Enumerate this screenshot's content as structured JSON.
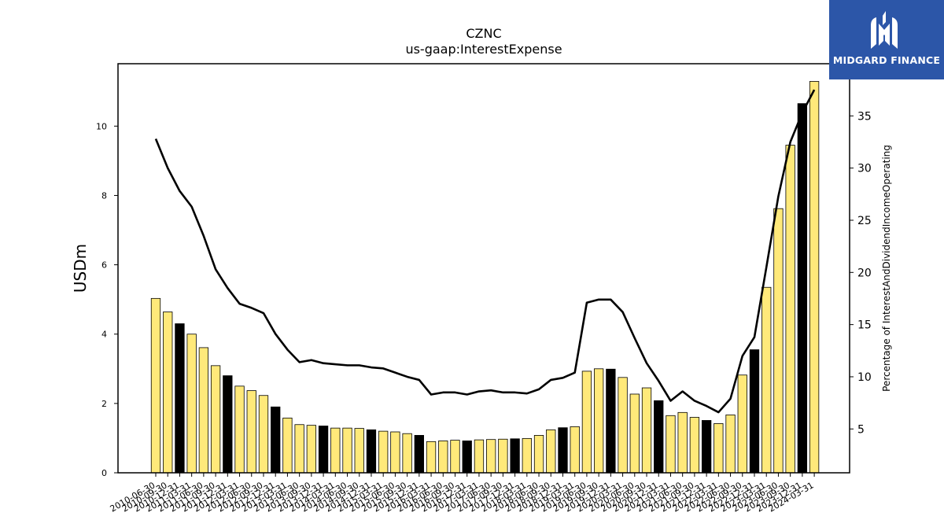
{
  "brand": {
    "name": "MIDGARD FINANCE",
    "color": "#2c56a8"
  },
  "chart_data": {
    "type": "bar+line",
    "title": "CZNC",
    "subtitle": "us-gaap:InterestExpense",
    "ylabel": "USDm",
    "y2label": "Percentage of InterestAndDividendIncomeOperating",
    "ylim": [
      0,
      11.8
    ],
    "y2lim": [
      0.8,
      40
    ],
    "yticks": [
      0,
      2,
      4,
      6,
      8,
      10
    ],
    "y2ticks": [
      5,
      10,
      15,
      20,
      25,
      30,
      35
    ],
    "bar_color": "#ffe97a",
    "bar_highlight_color": "#000000",
    "line_color": "#000000",
    "categories": [
      "2010-06-30",
      "2010-09-30",
      "2010-12-31",
      "2011-03-31",
      "2011-06-30",
      "2011-09-30",
      "2011-12-31",
      "2012-03-31",
      "2012-06-30",
      "2012-09-30",
      "2012-12-31",
      "2013-03-31",
      "2013-06-30",
      "2013-09-30",
      "2013-12-31",
      "2014-03-31",
      "2014-06-30",
      "2014-09-30",
      "2014-12-31",
      "2015-03-31",
      "2015-06-30",
      "2015-09-30",
      "2015-12-31",
      "2016-03-31",
      "2016-06-30",
      "2016-09-30",
      "2016-12-31",
      "2017-03-31",
      "2017-06-30",
      "2017-09-30",
      "2017-12-31",
      "2018-03-31",
      "2018-06-30",
      "2018-09-30",
      "2018-12-31",
      "2019-03-31",
      "2019-06-30",
      "2019-09-30",
      "2019-12-31",
      "2020-03-31",
      "2020-06-30",
      "2020-09-30",
      "2020-12-31",
      "2021-03-31",
      "2021-06-30",
      "2021-09-30",
      "2021-12-31",
      "2022-03-31",
      "2022-06-30",
      "2022-09-30",
      "2022-12-31",
      "2023-03-31",
      "2023-06-30",
      "2023-09-30",
      "2023-12-31",
      "2024-03-31"
    ],
    "series": [
      {
        "type": "bar",
        "axis": "left",
        "values": [
          5.03,
          4.64,
          4.3,
          4.0,
          3.61,
          3.09,
          2.8,
          2.5,
          2.37,
          2.23,
          1.9,
          1.58,
          1.39,
          1.37,
          1.35,
          1.29,
          1.29,
          1.28,
          1.24,
          1.2,
          1.18,
          1.13,
          1.08,
          0.9,
          0.92,
          0.94,
          0.92,
          0.95,
          0.96,
          0.97,
          0.98,
          0.99,
          1.08,
          1.24,
          1.3,
          1.33,
          2.93,
          3.0,
          2.99,
          2.75,
          2.27,
          2.45,
          2.08,
          1.65,
          1.74,
          1.6,
          1.51,
          1.42,
          1.67,
          2.82,
          3.55,
          5.35,
          7.62,
          9.45,
          10.65,
          11.29
        ]
      },
      {
        "type": "line",
        "axis": "right",
        "values": [
          32.8,
          30.0,
          27.8,
          26.3,
          23.5,
          20.3,
          18.5,
          17.0,
          16.6,
          16.1,
          14.1,
          12.6,
          11.4,
          11.6,
          11.3,
          11.2,
          11.1,
          11.1,
          10.9,
          10.8,
          10.4,
          10.0,
          9.7,
          8.3,
          8.5,
          8.5,
          8.3,
          8.6,
          8.7,
          8.5,
          8.5,
          8.4,
          8.8,
          9.7,
          9.9,
          10.4,
          17.1,
          17.4,
          17.4,
          16.2,
          13.7,
          11.3,
          9.6,
          7.7,
          8.6,
          7.7,
          7.2,
          6.6,
          7.9,
          12.0,
          13.8,
          20.5,
          27.3,
          32.5,
          35.3,
          37.5
        ]
      }
    ],
    "highlight_indices": [
      2,
      6,
      10,
      14,
      18,
      22,
      26,
      30,
      34,
      38,
      42,
      46,
      50,
      54
    ],
    "x_tick_labels": [
      "2010-06-30",
      "2010-09-30",
      "2010-12-31",
      "2011-03-31",
      "2011-06-30",
      "2011-09-30",
      "2011-12-31",
      "2012-03-31",
      "2012-06-30",
      "2012-09-30",
      "2012-12-31",
      "2013-03-31",
      "2013-06-30",
      "2013-09-30",
      "2013-12-31",
      "2014-03-31",
      "2014-06-30",
      "2014-09-30",
      "2014-12-31",
      "2015-03-31",
      "2015-06-30",
      "2015-09-30",
      "2015-12-31",
      "2016-03-31",
      "2016-06-30",
      "2016-09-30",
      "2016-12-31",
      "2017-03-31",
      "2017-06-30",
      "2017-09-30",
      "2017-12-31",
      "2018-03-31",
      "2018-06-30",
      "2018-09-30",
      "2018-12-31",
      "2019-03-31",
      "2019-06-30",
      "2019-09-30",
      "2019-12-31",
      "2020-03-31",
      "2020-06-30",
      "2020-09-30",
      "2020-12-31",
      "2021-03-31",
      "2021-06-30",
      "2021-09-30",
      "2021-12-31",
      "2022-03-31",
      "2022-06-30",
      "2022-09-30",
      "2022-12-31",
      "2023-03-31",
      "2023-06-30",
      "2023-09-30",
      "2023-12-31",
      "2024-03-31"
    ],
    "grid": false,
    "legend": "none"
  }
}
